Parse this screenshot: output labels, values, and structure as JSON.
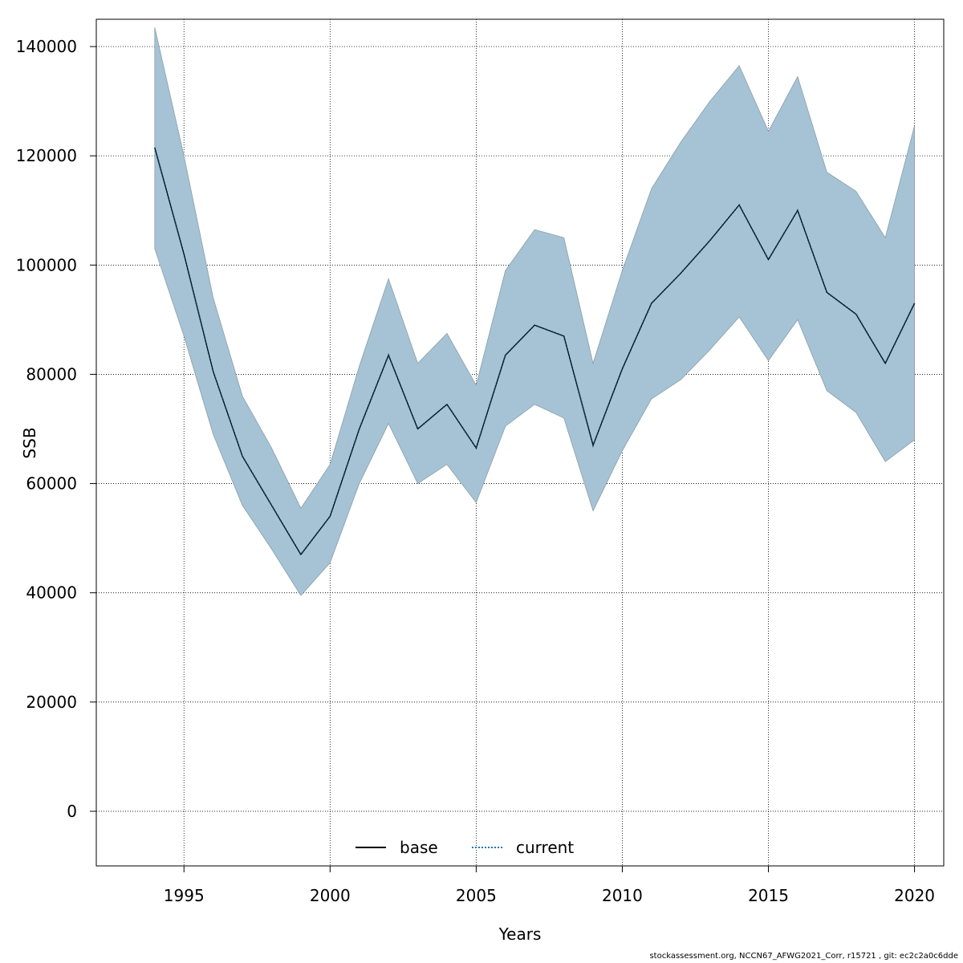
{
  "chart_data": {
    "type": "line",
    "title": "",
    "xlabel": "Years",
    "ylabel": "SSB",
    "xlim": [
      1992,
      2021
    ],
    "ylim": [
      -10000,
      145000
    ],
    "grid": true,
    "x_ticks": [
      1995,
      2000,
      2005,
      2010,
      2015,
      2020
    ],
    "y_ticks": [
      0,
      20000,
      40000,
      60000,
      80000,
      100000,
      120000,
      140000
    ],
    "x": [
      1994,
      1995,
      1996,
      1997,
      1998,
      1999,
      2000,
      2001,
      2002,
      2003,
      2004,
      2005,
      2006,
      2007,
      2008,
      2009,
      2010,
      2011,
      2012,
      2013,
      2014,
      2015,
      2016,
      2017,
      2018,
      2019,
      2020
    ],
    "series": [
      {
        "name": "base",
        "line_style": "solid",
        "color": "#000000",
        "values": [
          121500,
          102000,
          80500,
          65000,
          56000,
          47000,
          54000,
          70000,
          83500,
          70000,
          74500,
          66500,
          83500,
          89000,
          87000,
          67000,
          81000,
          93000,
          98500,
          104500,
          111000,
          101000,
          110000,
          95000,
          91000,
          82000,
          93000
        ]
      },
      {
        "name": "current",
        "line_style": "dotted",
        "color": "#1f77b4",
        "values": [
          121500,
          102000,
          80500,
          65000,
          56000,
          47000,
          54000,
          70000,
          83500,
          70000,
          74500,
          66500,
          83500,
          89000,
          87000,
          67000,
          81000,
          93000,
          98500,
          104500,
          111000,
          101000,
          110000,
          95000,
          91000,
          82000,
          93000
        ]
      }
    ],
    "confidence_band": {
      "color": "#a5c3d5",
      "lower": [
        103000,
        87000,
        69000,
        56000,
        48000,
        39500,
        45500,
        60000,
        71000,
        60000,
        63500,
        56500,
        70500,
        74500,
        72000,
        55000,
        66000,
        75500,
        79000,
        84500,
        90500,
        82500,
        90000,
        77000,
        73000,
        64000,
        68000
      ],
      "upper": [
        143500,
        120000,
        94000,
        76000,
        66500,
        55500,
        63500,
        81500,
        97500,
        82000,
        87500,
        78000,
        99000,
        106500,
        105000,
        82000,
        99000,
        114000,
        122500,
        130000,
        136500,
        124500,
        134500,
        117000,
        113500,
        105000,
        125500
      ]
    },
    "legend": {
      "position": "bottom-center",
      "entries": [
        {
          "label": "base",
          "style": "solid"
        },
        {
          "label": "current",
          "style": "dotted"
        }
      ]
    }
  },
  "footer_text": "stockassessment.org, NCCN67_AFWG2021_Corr, r15721 , git: ec2c2a0c6dde"
}
